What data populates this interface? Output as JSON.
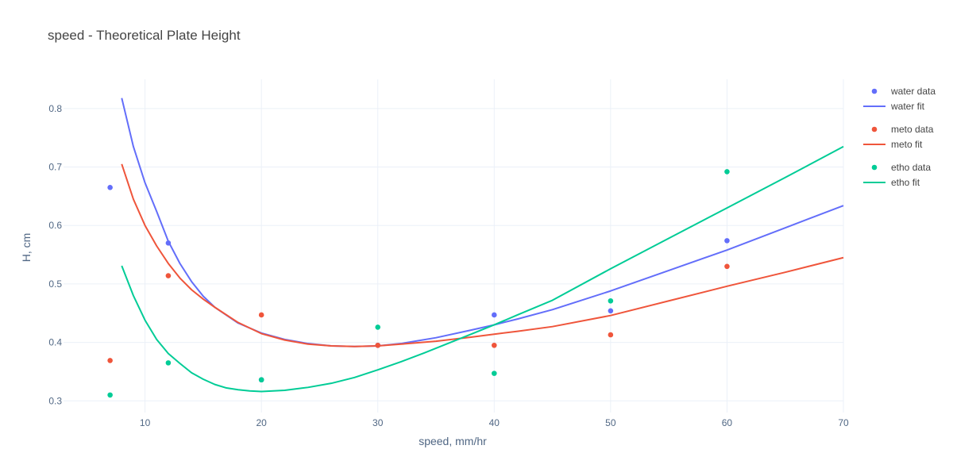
{
  "chart_data": {
    "type": "scatter",
    "title": "speed - Theoretical Plate Height",
    "xlabel": "speed, mm/hr",
    "ylabel": "H, cm",
    "xlim": [
      3,
      70
    ],
    "ylim": [
      0.28,
      0.85
    ],
    "xticks": [
      10,
      20,
      30,
      40,
      50,
      60,
      70
    ],
    "yticks": [
      0.3,
      0.4,
      0.5,
      0.6,
      0.7,
      0.8
    ],
    "grid": true,
    "legend_position": "right",
    "series": [
      {
        "name": "water data",
        "mode": "markers",
        "color": "#636efa",
        "x": [
          7,
          12,
          20,
          30,
          40,
          50,
          60
        ],
        "y": [
          0.665,
          0.57,
          0.336,
          0.395,
          0.447,
          0.454,
          0.574
        ]
      },
      {
        "name": "water fit",
        "mode": "lines",
        "color": "#636efa",
        "x": [
          8,
          9,
          10,
          11,
          12,
          13,
          14,
          15,
          16,
          18,
          20,
          22,
          24,
          26,
          28,
          30,
          32,
          35,
          38,
          40,
          42,
          45,
          50,
          55,
          60,
          65,
          70
        ],
        "y": [
          0.818,
          0.735,
          0.673,
          0.624,
          0.573,
          0.535,
          0.504,
          0.479,
          0.46,
          0.433,
          0.416,
          0.405,
          0.398,
          0.394,
          0.393,
          0.394,
          0.398,
          0.408,
          0.421,
          0.43,
          0.44,
          0.456,
          0.488,
          0.523,
          0.558,
          0.596,
          0.634
        ]
      },
      {
        "name": "meto data",
        "mode": "markers",
        "color": "#ef553b",
        "x": [
          7,
          12,
          20,
          30,
          40,
          50,
          60
        ],
        "y": [
          0.369,
          0.514,
          0.447,
          0.395,
          0.395,
          0.413,
          0.53
        ]
      },
      {
        "name": "meto fit",
        "mode": "lines",
        "color": "#ef553b",
        "x": [
          8,
          9,
          10,
          11,
          12,
          13,
          14,
          15,
          16,
          18,
          20,
          22,
          24,
          26,
          28,
          30,
          32,
          35,
          38,
          40,
          42,
          45,
          50,
          55,
          60,
          65,
          70
        ],
        "y": [
          0.705,
          0.645,
          0.6,
          0.565,
          0.535,
          0.51,
          0.49,
          0.474,
          0.46,
          0.434,
          0.415,
          0.404,
          0.397,
          0.394,
          0.393,
          0.394,
          0.397,
          0.402,
          0.409,
          0.414,
          0.419,
          0.427,
          0.446,
          0.471,
          0.496,
          0.52,
          0.545
        ]
      },
      {
        "name": "etho data",
        "mode": "markers",
        "color": "#00cc96",
        "x": [
          7,
          12,
          20,
          30,
          40,
          50,
          60
        ],
        "y": [
          0.31,
          0.365,
          0.336,
          0.426,
          0.347,
          0.471,
          0.692
        ]
      },
      {
        "name": "etho fit",
        "mode": "lines",
        "color": "#00cc96",
        "x": [
          8,
          9,
          10,
          11,
          12,
          13,
          14,
          15,
          16,
          17,
          18,
          19,
          20,
          21,
          22,
          24,
          26,
          28,
          30,
          32,
          34,
          36,
          38,
          40,
          42,
          45,
          50,
          55,
          60,
          65,
          70
        ],
        "y": [
          0.531,
          0.48,
          0.438,
          0.405,
          0.381,
          0.364,
          0.348,
          0.337,
          0.328,
          0.322,
          0.319,
          0.317,
          0.316,
          0.317,
          0.318,
          0.323,
          0.33,
          0.34,
          0.353,
          0.367,
          0.382,
          0.398,
          0.414,
          0.43,
          0.447,
          0.472,
          0.526,
          0.578,
          0.63,
          0.682,
          0.735
        ]
      }
    ]
  }
}
